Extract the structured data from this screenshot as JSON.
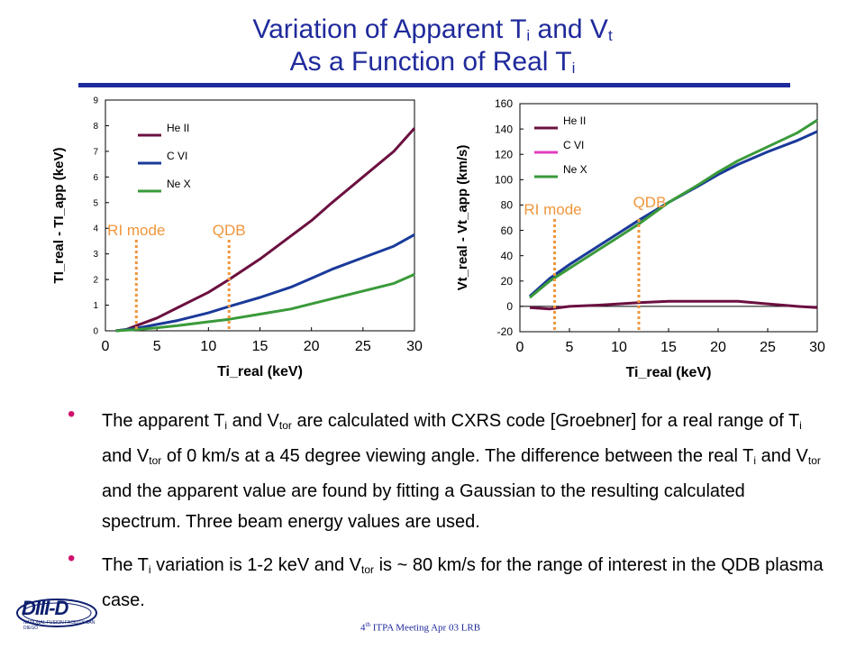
{
  "slide": {
    "title_line1_prefix": "Variation of Apparent T",
    "title_line1_sub_i": "i",
    "title_line1_mid": " and V",
    "title_line1_sub_t": "t",
    "title_line2_prefix": "As a Function of Real T",
    "title_line2_sub": "i",
    "accent_color": "#1f2a9c",
    "bullet_color": "#d0106e"
  },
  "bullets": {
    "b1_p1": "The apparent T",
    "b1_s1": "i",
    "b1_p2": " and V",
    "b1_s2": "tor",
    "b1_p3": " are calculated  with CXRS code [Groebner] for a real range of T",
    "b1_s3": "i",
    "b1_p4": " and V",
    "b1_s4": "tor",
    "b1_p5": " of 0 km/s at a 45 degree viewing angle. The difference between the real T",
    "b1_s5": "i",
    "b1_p6": " and V",
    "b1_s6": "tor",
    "b1_p7": " and the apparent value are found by fitting a Gaussian to the resulting calculated spectrum. Three beam energy values are used.",
    "b2_p1": "The T",
    "b2_s1": "i",
    "b2_p2": " variation is 1-2 keV and V",
    "b2_s2": "tor",
    "b2_p3": " is ~ 80 km/s for the range of interest in the QDB plasma case."
  },
  "footer": {
    "prefix": "4",
    "sup": "th",
    "rest": " ITPA Meeting  Apr 03  LRB"
  },
  "logo": {
    "text": "DIII-D",
    "subtext": "NATIONAL FUSION FACILITY  SAN DIEGO"
  },
  "chart_data": [
    {
      "type": "line",
      "title": "",
      "xlabel": "Ti_real (keV)",
      "ylabel": "TI_real - TI_app (keV)",
      "xlim": [
        0,
        30
      ],
      "ylim": [
        0,
        9
      ],
      "xticks": [
        0,
        5,
        10,
        15,
        20,
        25,
        30
      ],
      "yticks": [
        0,
        1,
        2,
        3,
        4,
        5,
        6,
        7,
        8,
        9
      ],
      "legend_position": "top-left",
      "series": [
        {
          "name": "He II",
          "color": "#6b1040",
          "x": [
            1,
            2,
            3,
            5,
            7,
            10,
            12,
            15,
            18,
            20,
            22,
            25,
            28,
            30
          ],
          "y": [
            0,
            0.05,
            0.2,
            0.5,
            0.9,
            1.5,
            2.0,
            2.8,
            3.7,
            4.3,
            5.0,
            6.0,
            7.0,
            7.9
          ]
        },
        {
          "name": "C VI",
          "color": "#1a3a9a",
          "x": [
            1,
            3,
            5,
            7,
            10,
            12,
            15,
            18,
            20,
            22,
            25,
            28,
            30
          ],
          "y": [
            0,
            0.1,
            0.25,
            0.4,
            0.7,
            0.95,
            1.3,
            1.7,
            2.05,
            2.4,
            2.85,
            3.3,
            3.75
          ]
        },
        {
          "name": "Ne X",
          "color": "#3a9a3a",
          "x": [
            1,
            3,
            5,
            7,
            10,
            12,
            15,
            18,
            20,
            22,
            25,
            28,
            30
          ],
          "y": [
            0,
            0.05,
            0.12,
            0.2,
            0.35,
            0.45,
            0.65,
            0.85,
            1.05,
            1.25,
            1.55,
            1.85,
            2.2
          ]
        }
      ],
      "markers": [
        {
          "label": "RI mode",
          "x": 3.0,
          "color": "#f0963c"
        },
        {
          "label": "QDB",
          "x": 12.0,
          "color": "#f0963c"
        }
      ]
    },
    {
      "type": "line",
      "title": "",
      "xlabel": "Ti_real (keV)",
      "ylabel": "Vt_real - Vt_app (km/s)",
      "xlim": [
        0,
        30
      ],
      "ylim": [
        -20,
        160
      ],
      "xticks": [
        0,
        5,
        10,
        15,
        20,
        25,
        30
      ],
      "yticks": [
        -20,
        0,
        20,
        40,
        60,
        80,
        100,
        120,
        140,
        160
      ],
      "legend_position": "top-left",
      "series": [
        {
          "name": "He II",
          "color": "#6b1040",
          "x": [
            1,
            3,
            5,
            8,
            10,
            12,
            15,
            18,
            20,
            22,
            25,
            28,
            30
          ],
          "y": [
            -1,
            -2,
            0,
            1,
            2,
            3,
            4,
            4,
            4,
            4,
            2,
            0,
            -1
          ]
        },
        {
          "name": "C VI",
          "color": "#1a3a9a",
          "x": [
            1,
            3,
            5,
            8,
            10,
            12,
            15,
            18,
            20,
            22,
            25,
            28,
            30
          ],
          "y": [
            8,
            22,
            33,
            48,
            58,
            68,
            82,
            95,
            104,
            112,
            122,
            131,
            138
          ]
        },
        {
          "name": "Ne X",
          "color": "#3a9a3a",
          "x": [
            1,
            3,
            5,
            8,
            10,
            12,
            15,
            18,
            20,
            22,
            25,
            28,
            30
          ],
          "y": [
            7,
            20,
            30,
            45,
            55,
            65,
            82,
            96,
            106,
            115,
            126,
            137,
            147
          ]
        }
      ],
      "legend_extra": [
        {
          "name": "C VI",
          "color": "#e040c0"
        }
      ],
      "markers": [
        {
          "label": "RI mode",
          "x": 3.5,
          "color": "#f0963c"
        },
        {
          "label": "QDB",
          "x": 12.0,
          "color": "#f0963c"
        }
      ]
    }
  ]
}
